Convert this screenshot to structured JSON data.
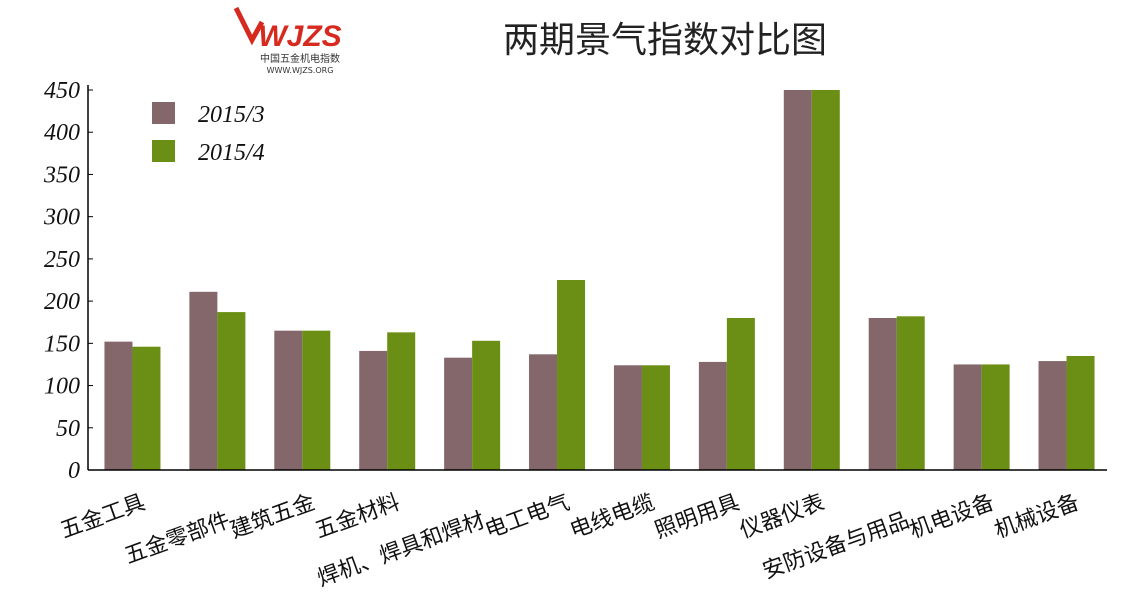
{
  "logo": {
    "mark": "WJZS",
    "name": "中国五金机电指数",
    "url": "WWW.WJZS.ORG"
  },
  "chart_data": {
    "type": "bar",
    "title": "两期景气指数对比图",
    "categories": [
      "五金工具",
      "五金零部件",
      "建筑五金",
      "五金材料",
      "焊机、焊具和焊材",
      "电工电气",
      "电线电缆",
      "照明用具",
      "仪器仪表",
      "安防设备与用品",
      "机电设备",
      "机械设备"
    ],
    "series": [
      {
        "name": "2015/3",
        "color": "#84676a",
        "values": [
          152,
          211,
          165,
          141,
          133,
          137,
          124,
          128,
          450,
          180,
          125,
          129
        ]
      },
      {
        "name": "2015/4",
        "color": "#6b8e14",
        "values": [
          146,
          187,
          165,
          163,
          153,
          225,
          124,
          180,
          450,
          182,
          125,
          135
        ]
      }
    ],
    "ylim": [
      0,
      450
    ],
    "yticks": [
      0,
      50,
      100,
      150,
      200,
      250,
      300,
      350,
      400,
      450
    ],
    "grid": false,
    "legend": "top-left"
  }
}
